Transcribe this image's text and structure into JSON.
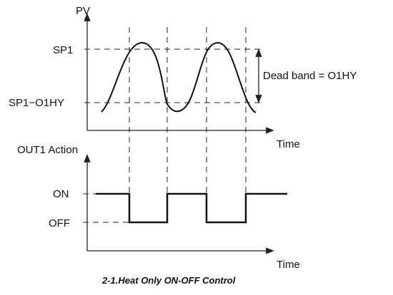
{
  "top_graph": {
    "y_axis_label": "PV",
    "x_axis_label": "Time",
    "sp1_label": "SP1",
    "sp1_hys_label": "SP1−O1HY",
    "dead_band_label": "Dead band = O1HY"
  },
  "bottom_graph": {
    "y_axis_label": "OUT1 Action",
    "x_axis_label": "Time",
    "on_label": "ON",
    "off_label": "OFF"
  },
  "caption": "2-1.Heat Only ON-OFF Control"
}
